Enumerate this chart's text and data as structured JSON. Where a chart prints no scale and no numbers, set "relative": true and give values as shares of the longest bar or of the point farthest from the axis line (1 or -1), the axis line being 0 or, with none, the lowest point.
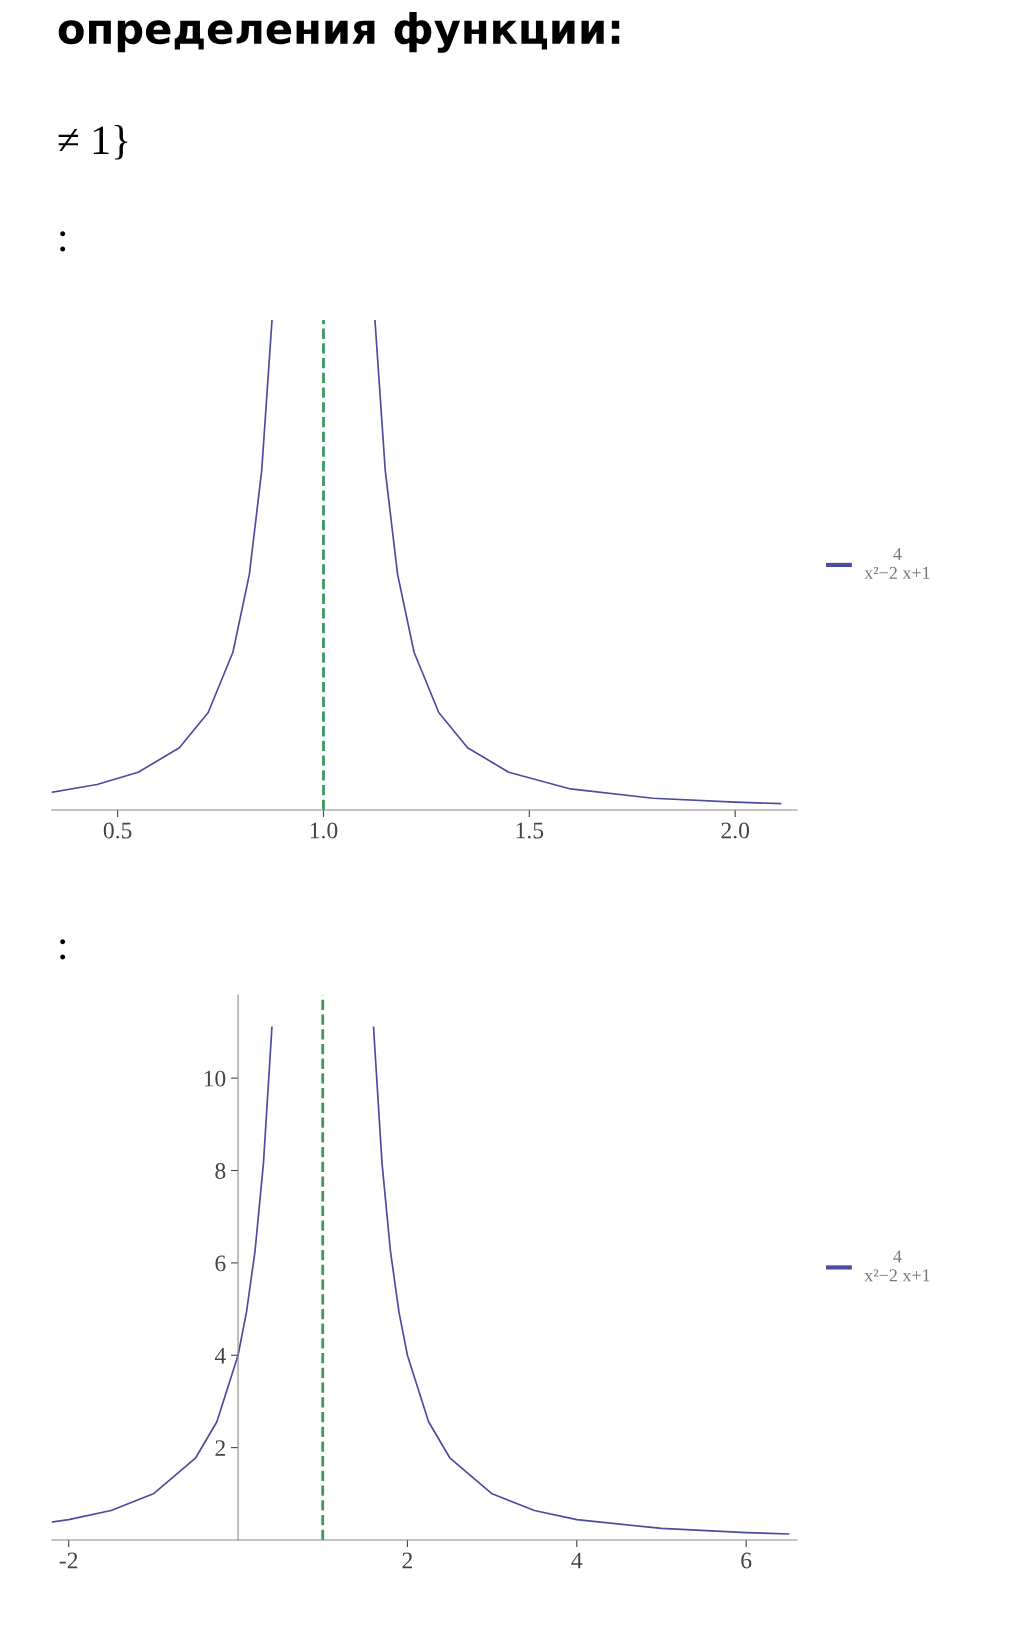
{
  "chart_data": [
    {
      "type": "line",
      "relative": true,
      "annotations": [
        "определения функции:",
        "≠ 1}",
        ":"
      ],
      "x": [
        0.34,
        0.45,
        0.55,
        0.65,
        0.72,
        0.78,
        0.82,
        0.85,
        0.875,
        1.0,
        1.125,
        1.15,
        1.18,
        1.22,
        1.28,
        1.35,
        1.45,
        1.6,
        1.8,
        2.0,
        2.11
      ],
      "series": [
        {
          "name": "4\nx²−2 x+1",
          "color": "#4b4ba0",
          "values": [
            0.036,
            0.052,
            0.077,
            0.127,
            0.199,
            0.322,
            0.481,
            0.693,
            1.0,
            null,
            1.0,
            0.693,
            0.481,
            0.322,
            0.199,
            0.127,
            0.077,
            0.043,
            0.024,
            0.016,
            0.013
          ]
        }
      ],
      "xlim": [
        0.34,
        2.15
      ],
      "xticks": [
        {
          "value": 0.5,
          "label": "0.5"
        },
        {
          "value": 1.0,
          "label": "1.0"
        },
        {
          "value": 1.5,
          "label": "1.5"
        },
        {
          "value": 2.0,
          "label": "2.0"
        }
      ],
      "ref_lines": [
        {
          "axis": "x",
          "value": 1,
          "color": "#3a9a5a",
          "line_style": "dashed"
        }
      ],
      "legend": "right",
      "grid": false,
      "marker": "none",
      "line_style": "solid"
    },
    {
      "type": "line",
      "annotations": [
        ":"
      ],
      "x": [
        -2.2,
        -2,
        -1.5,
        -1,
        -0.5,
        -0.25,
        0,
        0.1,
        0.2,
        0.3,
        0.4,
        1.0,
        1.6,
        1.7,
        1.8,
        1.9,
        2,
        2.25,
        2.5,
        3,
        3.5,
        4,
        5,
        6,
        6.5
      ],
      "series": [
        {
          "name": "4\nx²−2 x+1",
          "color": "#4b4ba0",
          "values": [
            0.39,
            0.44,
            0.64,
            1.0,
            1.78,
            2.56,
            4.0,
            4.94,
            6.25,
            8.16,
            11.1,
            null,
            11.1,
            8.16,
            6.25,
            4.94,
            4.0,
            2.56,
            1.78,
            1.0,
            0.64,
            0.44,
            0.25,
            0.16,
            0.13
          ]
        }
      ],
      "xlim": [
        -2.2,
        6.6
      ],
      "ylim": [
        0,
        11.8
      ],
      "xticks": [
        -2,
        2,
        4,
        6
      ],
      "yticks": [
        2,
        4,
        6,
        8,
        10
      ],
      "ref_lines": [
        {
          "axis": "x",
          "value": 1,
          "color": "#3a9a5a",
          "line_style": "dashed"
        }
      ],
      "legend": "right",
      "grid": false,
      "marker": "none",
      "line_style": "solid"
    }
  ]
}
